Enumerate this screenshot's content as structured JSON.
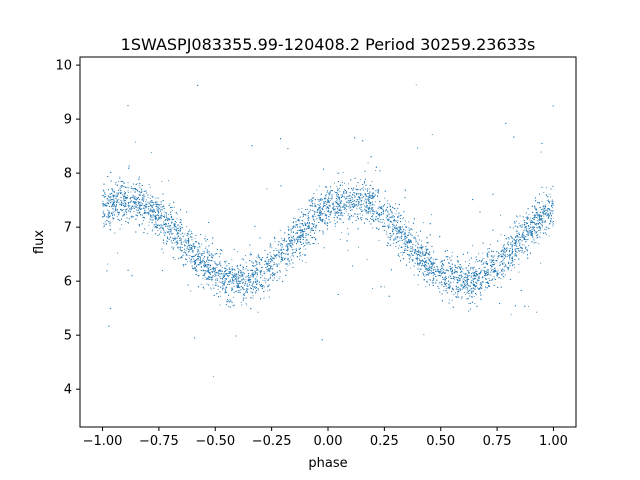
{
  "chart_data": {
    "type": "scatter",
    "title": "1SWASPJ083355.99-120408.2 Period 30259.23633s",
    "xlabel": "phase",
    "ylabel": "flux",
    "xlim": [
      -1.1,
      1.1
    ],
    "ylim": [
      3.3,
      10.15
    ],
    "xticks": [
      -1.0,
      -0.75,
      -0.5,
      -0.25,
      0.0,
      0.25,
      0.5,
      0.75,
      1.0
    ],
    "xtick_labels": [
      "−1.00",
      "−0.75",
      "−0.50",
      "−0.25",
      "0.00",
      "0.25",
      "0.50",
      "0.75",
      "1.00"
    ],
    "yticks": [
      4,
      5,
      6,
      7,
      8,
      9,
      10
    ],
    "ytick_labels": [
      "4",
      "5",
      "6",
      "7",
      "8",
      "9",
      "10"
    ],
    "grid": false,
    "marker_color": "#1f77b4",
    "series": [
      {
        "curve": "sinusoidal light curve, repeated over two cycles",
        "phase_range": [
          -1.0,
          1.0
        ],
        "max_flux": 7.5,
        "max_phase": [
          -0.9,
          0.1
        ],
        "min_flux": 6.0,
        "min_phase": [
          -0.4,
          0.6
        ],
        "typical_scatter": 0.2,
        "outlier_range": [
          3.6,
          9.9
        ],
        "sampled_points": [
          [
            -1.0,
            7.35
          ],
          [
            -0.9,
            7.5
          ],
          [
            -0.8,
            7.4
          ],
          [
            -0.7,
            7.1
          ],
          [
            -0.6,
            6.6
          ],
          [
            -0.5,
            6.15
          ],
          [
            -0.4,
            5.95
          ],
          [
            -0.3,
            6.1
          ],
          [
            -0.2,
            6.55
          ],
          [
            -0.1,
            7.05
          ],
          [
            0.0,
            7.4
          ],
          [
            0.1,
            7.5
          ],
          [
            0.2,
            7.4
          ],
          [
            0.3,
            7.1
          ],
          [
            0.4,
            6.6
          ],
          [
            0.5,
            6.15
          ],
          [
            0.6,
            5.95
          ],
          [
            0.7,
            6.1
          ],
          [
            0.8,
            6.55
          ],
          [
            0.9,
            7.05
          ],
          [
            1.0,
            7.4
          ]
        ]
      }
    ]
  }
}
